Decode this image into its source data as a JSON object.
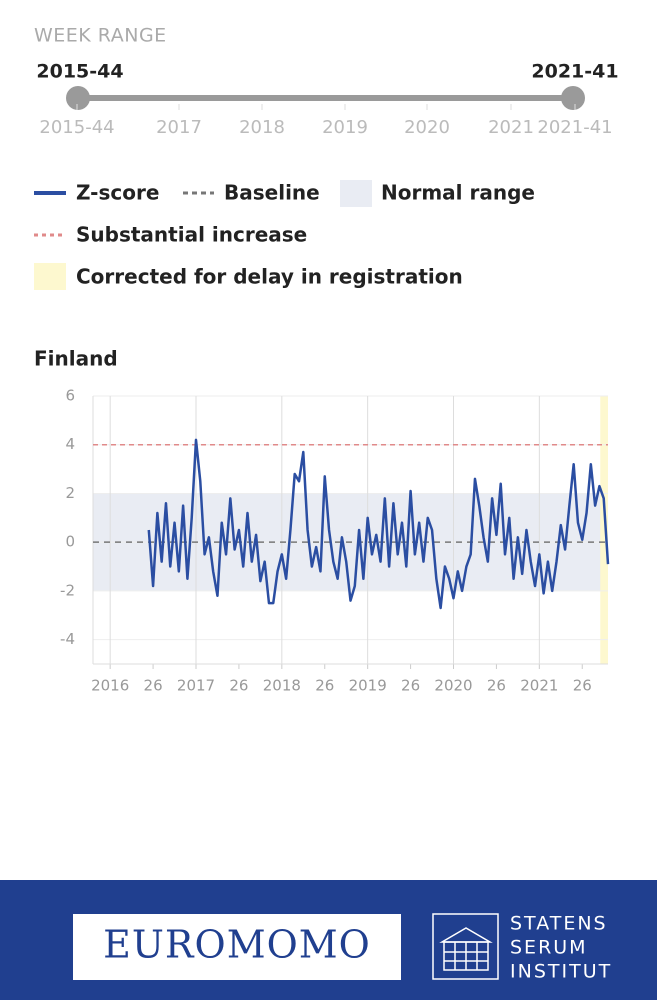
{
  "week_range": {
    "label": "WEEK RANGE",
    "start": "2015-44",
    "end": "2021-41",
    "ticks": [
      "2015-44",
      "2017",
      "2018",
      "2019",
      "2020",
      "2021",
      "2021-41"
    ]
  },
  "chart_data": {
    "type": "line",
    "title": "Finland",
    "x": [
      2016.45,
      2016.5,
      2016.55,
      2016.6,
      2016.65,
      2016.7,
      2016.75,
      2016.8,
      2016.85,
      2016.9,
      2016.95,
      2017.0,
      2017.05,
      2017.1,
      2017.15,
      2017.2,
      2017.25,
      2017.3,
      2017.35,
      2017.4,
      2017.45,
      2017.5,
      2017.55,
      2017.6,
      2017.65,
      2017.7,
      2017.75,
      2017.8,
      2017.85,
      2017.9,
      2017.95,
      2018.0,
      2018.05,
      2018.1,
      2018.15,
      2018.2,
      2018.25,
      2018.3,
      2018.35,
      2018.4,
      2018.45,
      2018.5,
      2018.55,
      2018.6,
      2018.65,
      2018.7,
      2018.75,
      2018.8,
      2018.85,
      2018.9,
      2018.95,
      2019.0,
      2019.05,
      2019.1,
      2019.15,
      2019.2,
      2019.25,
      2019.3,
      2019.35,
      2019.4,
      2019.45,
      2019.5,
      2019.55,
      2019.6,
      2019.65,
      2019.7,
      2019.75,
      2019.8,
      2019.85,
      2019.9,
      2019.95,
      2020.0,
      2020.05,
      2020.1,
      2020.15,
      2020.2,
      2020.25,
      2020.3,
      2020.35,
      2020.4,
      2020.45,
      2020.5,
      2020.55,
      2020.6,
      2020.65,
      2020.7,
      2020.75,
      2020.8,
      2020.85,
      2020.9,
      2020.95,
      2021.0,
      2021.05,
      2021.1,
      2021.15,
      2021.2,
      2021.25,
      2021.3,
      2021.35,
      2021.4,
      2021.45,
      2021.5,
      2021.55,
      2021.6,
      2021.65,
      2021.7,
      2021.75,
      2021.8
    ],
    "series": [
      {
        "name": "Z-score",
        "color": "#2b4ea2",
        "values": [
          0.5,
          -1.8,
          1.2,
          -0.8,
          1.6,
          -1.0,
          0.8,
          -1.2,
          1.5,
          -1.5,
          1.0,
          4.2,
          2.5,
          -0.5,
          0.2,
          -1.2,
          -2.2,
          0.8,
          -0.5,
          1.8,
          -0.3,
          0.5,
          -1.0,
          1.2,
          -0.8,
          0.3,
          -1.6,
          -0.8,
          -2.5,
          -2.5,
          -1.2,
          -0.5,
          -1.5,
          0.5,
          2.8,
          2.5,
          3.7,
          0.5,
          -1.0,
          -0.2,
          -1.2,
          2.7,
          0.5,
          -0.8,
          -1.5,
          0.2,
          -0.8,
          -2.4,
          -1.8,
          0.5,
          -1.5,
          1.0,
          -0.5,
          0.3,
          -0.8,
          1.8,
          -1.0,
          1.6,
          -0.5,
          0.8,
          -1.0,
          2.1,
          -0.5,
          0.8,
          -0.8,
          1.0,
          0.5,
          -1.5,
          -2.7,
          -1.0,
          -1.5,
          -2.3,
          -1.2,
          -2.0,
          -1.0,
          -0.5,
          2.6,
          1.5,
          0.2,
          -0.8,
          1.8,
          0.3,
          2.4,
          -0.5,
          1.0,
          -1.5,
          0.2,
          -1.3,
          0.5,
          -0.8,
          -1.8,
          -0.5,
          -2.1,
          -0.8,
          -2.0,
          -0.8,
          0.7,
          -0.3,
          1.5,
          3.2,
          0.8,
          0.1,
          1.2,
          3.2,
          1.5,
          2.3,
          1.8,
          -0.9
        ]
      }
    ],
    "baseline": {
      "name": "Baseline",
      "value": 0,
      "color": "#777777"
    },
    "normal_range": {
      "name": "Normal range",
      "low": -2,
      "high": 2,
      "color": "#e9ecf3"
    },
    "threshold": {
      "name": "Substantial increase",
      "value": 4,
      "color": "#e08a8a"
    },
    "correction": {
      "name": "Corrected for delay in registration",
      "from": 2021.71,
      "color": "#fdf8cf"
    },
    "xlim": [
      2015.8,
      2021.8
    ],
    "xticks": [
      2016,
      {
        "value": 2016.5,
        "label": "26"
      },
      2017,
      {
        "value": 2017.5,
        "label": "26"
      },
      2018,
      {
        "value": 2018.5,
        "label": "26"
      },
      2019,
      {
        "value": 2019.5,
        "label": "26"
      },
      2020,
      {
        "value": 2020.5,
        "label": "26"
      },
      2021,
      {
        "value": 2021.5,
        "label": "26"
      }
    ],
    "ylim": [
      -5,
      6
    ],
    "yticks": [
      -4,
      -2,
      0,
      2,
      4,
      6
    ],
    "grid": true
  },
  "footer": {
    "logo": "EUROMOMO",
    "institute": [
      "STATENS",
      "SERUM",
      "INSTITUT"
    ]
  }
}
